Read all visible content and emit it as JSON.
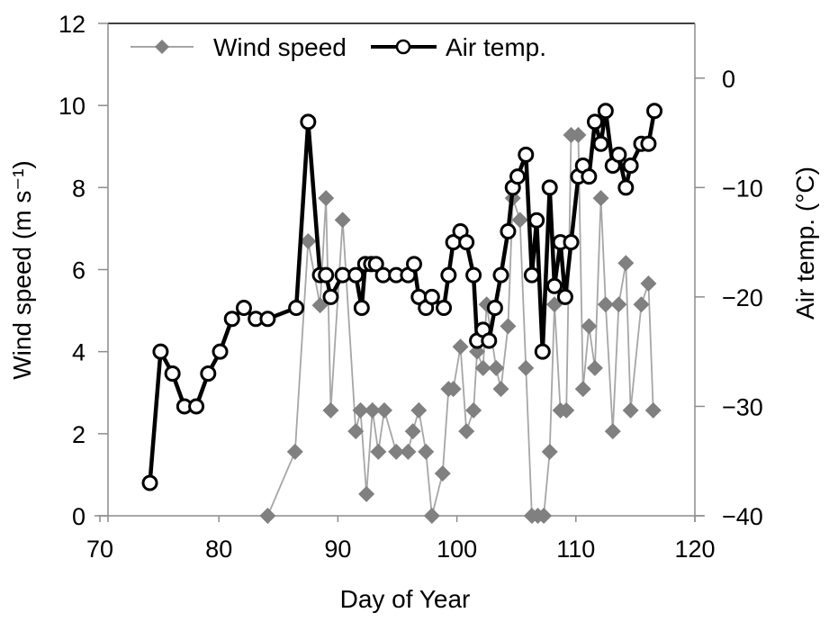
{
  "chart_data": {
    "type": "line",
    "title": "",
    "xlabel": "Day of Year",
    "ylabel": "Wind speed (m s⁻¹)",
    "ylabel_right": "Air temp. (°C)",
    "xlim": [
      70,
      120
    ],
    "ylim": [
      0,
      12
    ],
    "ylim_right": [
      -40,
      5
    ],
    "xticks": [
      "70",
      "80",
      "90",
      "100",
      "110",
      "120"
    ],
    "xtick_values": [
      70,
      80,
      90,
      100,
      110,
      120
    ],
    "yticks": [
      "0",
      "2",
      "4",
      "6",
      "8",
      "10",
      "12"
    ],
    "ytick_values": [
      0,
      2,
      4,
      6,
      8,
      10,
      12
    ],
    "yticks_right": [
      "−40",
      "−30",
      "−20",
      "−10",
      "0"
    ],
    "ytick_right_values": [
      -40,
      -30,
      -20,
      -10,
      0
    ],
    "grid": false,
    "legend_position": "top",
    "series": [
      {
        "name": "Wind speed",
        "axis": "left",
        "color": "#808080",
        "line_color": "#a6a6a6",
        "marker": "diamond",
        "x": [
          84.1,
          86.4,
          87.5,
          88.5,
          89.0,
          89.4,
          90.4,
          91.5,
          91.9,
          92.4,
          92.9,
          93.4,
          93.9,
          94.9,
          95.9,
          96.3,
          96.8,
          97.4,
          97.9,
          98.8,
          99.3,
          99.7,
          100.3,
          100.8,
          101.4,
          101.7,
          102.2,
          102.5,
          103.3,
          103.7,
          104.3,
          104.7,
          105.3,
          105.8,
          106.3,
          106.8,
          107.3,
          107.8,
          108.2,
          108.7,
          109.2,
          109.6,
          110.2,
          110.6,
          111.1,
          111.6,
          112.1,
          112.5,
          113.1,
          113.6,
          114.2,
          114.6,
          115.5,
          116.1,
          116.5
        ],
        "values": [
          0,
          1.56,
          6.69,
          5.13,
          7.74,
          2.57,
          7.21,
          2.06,
          2.57,
          0.53,
          2.57,
          1.56,
          2.57,
          1.56,
          1.56,
          2.06,
          2.57,
          1.56,
          0,
          1.03,
          3.09,
          3.09,
          4.12,
          2.06,
          2.57,
          4.0,
          3.6,
          5.15,
          3.6,
          3.09,
          4.62,
          7.74,
          7.21,
          3.6,
          0,
          0,
          0,
          1.56,
          5.15,
          2.57,
          2.57,
          9.28,
          9.28,
          3.09,
          4.62,
          3.6,
          7.74,
          5.15,
          2.06,
          5.15,
          6.16,
          2.57,
          5.15,
          5.66,
          2.57
        ]
      },
      {
        "name": "Air temp.",
        "axis": "right",
        "color": "#000000",
        "marker": "open-circle",
        "x": [
          74.2,
          75.1,
          76.1,
          77.1,
          78.1,
          79.1,
          80.1,
          81.1,
          82.1,
          83.1,
          84.1,
          86.5,
          87.5,
          88.5,
          89.0,
          89.4,
          90.4,
          91.5,
          92.0,
          92.3,
          92.8,
          93.2,
          93.8,
          94.9,
          95.9,
          96.4,
          96.8,
          97.4,
          97.9,
          98.9,
          99.3,
          99.7,
          100.3,
          100.8,
          101.4,
          101.7,
          102.2,
          102.7,
          103.2,
          103.7,
          104.3,
          104.7,
          105.1,
          105.8,
          106.3,
          106.7,
          107.2,
          107.8,
          108.2,
          108.7,
          109.1,
          109.6,
          110.2,
          110.6,
          111.1,
          111.6,
          112.1,
          112.5,
          113.1,
          113.6,
          114.2,
          114.6,
          115.5,
          116.1,
          116.6
        ],
        "values": [
          -37,
          -25,
          -27,
          -30,
          -30,
          -27,
          -25,
          -22,
          -21,
          -22,
          -22,
          -21,
          -4,
          -18,
          -18,
          -20,
          -18,
          -18,
          -21,
          -17,
          -17,
          -17,
          -18,
          -18,
          -18,
          -17,
          -20,
          -21,
          -20,
          -21,
          -18,
          -15,
          -14,
          -15,
          -18,
          -24,
          -23,
          -24,
          -21,
          -18,
          -14,
          -10,
          -9,
          -7,
          -18,
          -13,
          -25,
          -10,
          -19,
          -15,
          -20,
          -15,
          -9,
          -8,
          -9,
          -4,
          -6,
          -3,
          -8,
          -7,
          -10,
          -8,
          -6,
          -6,
          -3
        ]
      }
    ]
  }
}
